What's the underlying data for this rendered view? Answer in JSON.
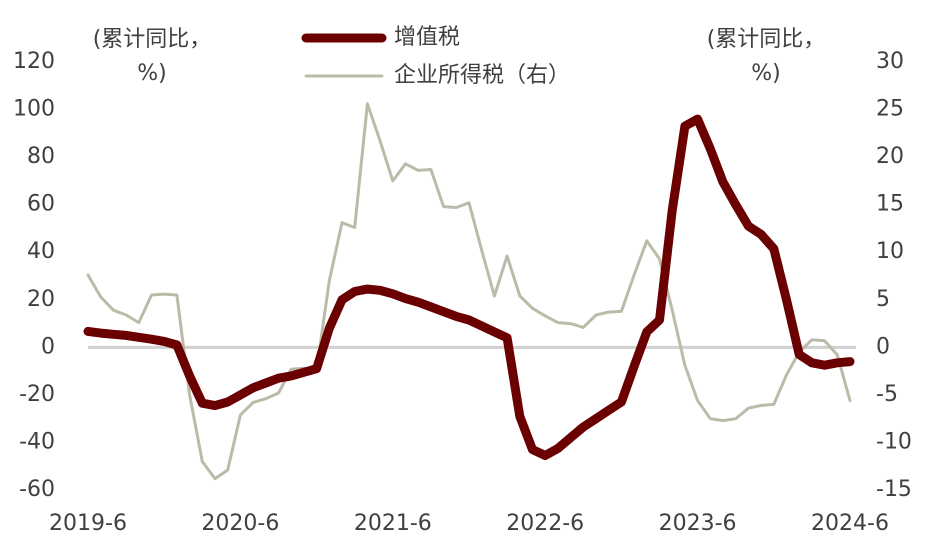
{
  "chart_data": {
    "type": "line",
    "y_label": [
      "(累计同比，",
      "%)"
    ],
    "y2_label": [
      "(累计同比，",
      "%)"
    ],
    "categories": [
      "2019-6",
      null,
      null,
      null,
      null,
      null,
      null,
      null,
      null,
      null,
      null,
      null,
      "2020-6",
      null,
      null,
      null,
      null,
      null,
      null,
      null,
      null,
      null,
      null,
      null,
      "2021-6",
      null,
      null,
      null,
      null,
      null,
      null,
      null,
      null,
      null,
      null,
      null,
      "2022-6",
      null,
      null,
      null,
      null,
      null,
      null,
      null,
      null,
      null,
      null,
      null,
      "2023-6",
      null,
      null,
      null,
      null,
      null,
      null,
      null,
      null,
      null,
      null,
      null,
      "2024-6"
    ],
    "series": [
      {
        "name": "增值税",
        "color": "#6b0000",
        "width": 9,
        "values": [
          6.7,
          6,
          5.5,
          5,
          4.2,
          3.4,
          2.5,
          1,
          -12,
          -23.5,
          -24.5,
          -23,
          -20,
          -17,
          -15,
          -13,
          -12,
          -10.5,
          -9,
          8,
          20,
          23.5,
          24.5,
          24,
          22.5,
          20.5,
          19,
          17,
          15,
          13,
          11.5,
          9,
          6.5,
          4,
          -29,
          -43,
          -45.5,
          -42.5,
          -38,
          -33.5,
          -30,
          -26.5,
          -23,
          -8,
          6.5,
          11.5,
          57.5,
          93,
          96,
          83.5,
          69.5,
          60,
          51,
          47.5,
          41.5,
          20,
          -3,
          -6.5,
          -7.5,
          -6.5,
          -6
        ]
      },
      {
        "name": "企业所得税（右）",
        "color": "#bcbbaa",
        "width": 3,
        "axis": "y2",
        "values": [
          7.6,
          5.3,
          3.9,
          3.4,
          2.6,
          5.5,
          5.6,
          5.5,
          -5,
          -12,
          -13.8,
          -12.9,
          -7.1,
          -5.8,
          -5.4,
          -4.8,
          -2.3,
          -2.2,
          -2.4,
          7,
          13.1,
          12.6,
          25.6,
          21.7,
          17.5,
          19.3,
          18.6,
          18.7,
          14.8,
          14.7,
          15.2,
          10.2,
          5.4,
          9.6,
          5.4,
          4.1,
          3.3,
          2.6,
          2.5,
          2.1,
          3.4,
          3.7,
          3.8,
          7.6,
          11.2,
          9.3,
          3.9,
          -1.9,
          -5.6,
          -7.5,
          -7.7,
          -7.5,
          -6.4,
          -6.1,
          -6,
          -2.9,
          -0.5,
          0.8,
          0.7,
          -0.8,
          -5.6
        ]
      }
    ],
    "ylim": [
      -60,
      120
    ],
    "yticks": [
      -60,
      -40,
      -20,
      0,
      20,
      40,
      60,
      80,
      100,
      120
    ],
    "y2lim": [
      -15,
      30
    ],
    "y2ticks": [
      -15,
      -10,
      -5,
      0,
      5,
      10,
      15,
      20,
      25,
      30
    ],
    "zero_line": true
  }
}
